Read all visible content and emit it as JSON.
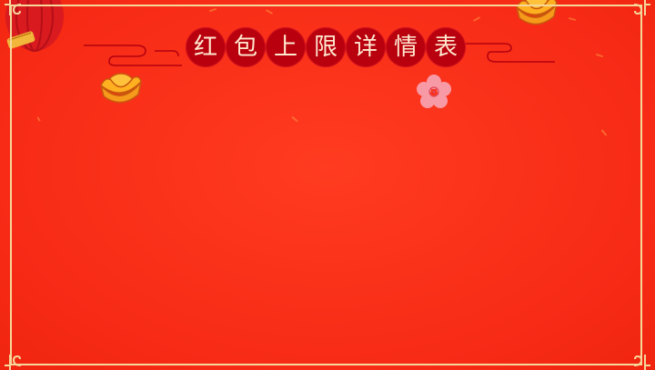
{
  "title": {
    "chars": [
      "红",
      "包",
      "上",
      "限",
      "详",
      "情",
      "表"
    ]
  },
  "colors": {
    "background": "#f72b16",
    "frame": "#f6d79a",
    "title_circle": "#b8000e",
    "title_text": "#ffe9d0"
  },
  "decorations": [
    "lantern-icon",
    "gold-ingot-icon",
    "plum-blossom-icon",
    "cloud-line-icon",
    "corner-ornament-icon"
  ]
}
